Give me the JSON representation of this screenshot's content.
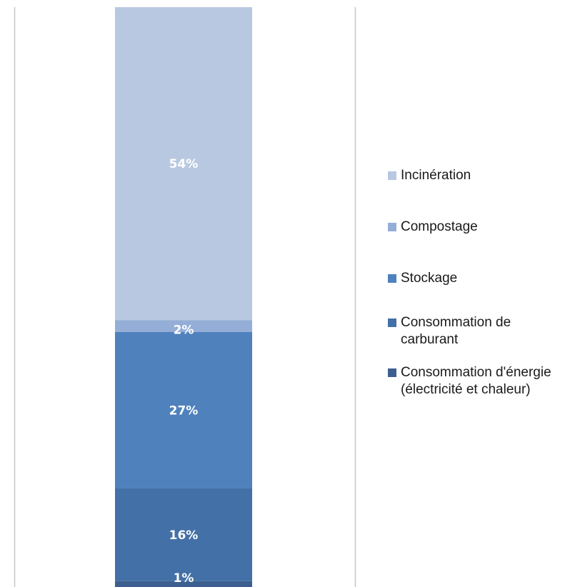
{
  "chart_data": {
    "type": "bar",
    "stacked": true,
    "grid": false,
    "ylim": [
      0,
      100
    ],
    "categories": [
      ""
    ],
    "series": [
      {
        "name": "Consommation d'énergie (électricité et chaleur)",
        "values": [
          1
        ],
        "label": "1%",
        "color": "#3c5f8f"
      },
      {
        "name": "Consommation de carburant",
        "values": [
          16
        ],
        "label": "16%",
        "color": "#4370a6"
      },
      {
        "name": "Stockage",
        "values": [
          27
        ],
        "label": "27%",
        "color": "#4f81bd"
      },
      {
        "name": "Compostage",
        "values": [
          2
        ],
        "label": "2%",
        "color": "#95aed7"
      },
      {
        "name": "Incinération",
        "values": [
          54
        ],
        "label": "54%",
        "color": "#b9c8e1"
      }
    ]
  },
  "legend": {
    "placement": "right",
    "items": [
      {
        "label": "Incinération",
        "color": "#b9c8e1"
      },
      {
        "label": "Compostage",
        "color": "#95aed7"
      },
      {
        "label": "Stockage",
        "color": "#4f81bd"
      },
      {
        "label": "Consommation de carburant",
        "color": "#4370a6"
      },
      {
        "label": "Consommation d'énergie (électricité et chaleur)",
        "color": "#3c5f8f"
      }
    ]
  }
}
